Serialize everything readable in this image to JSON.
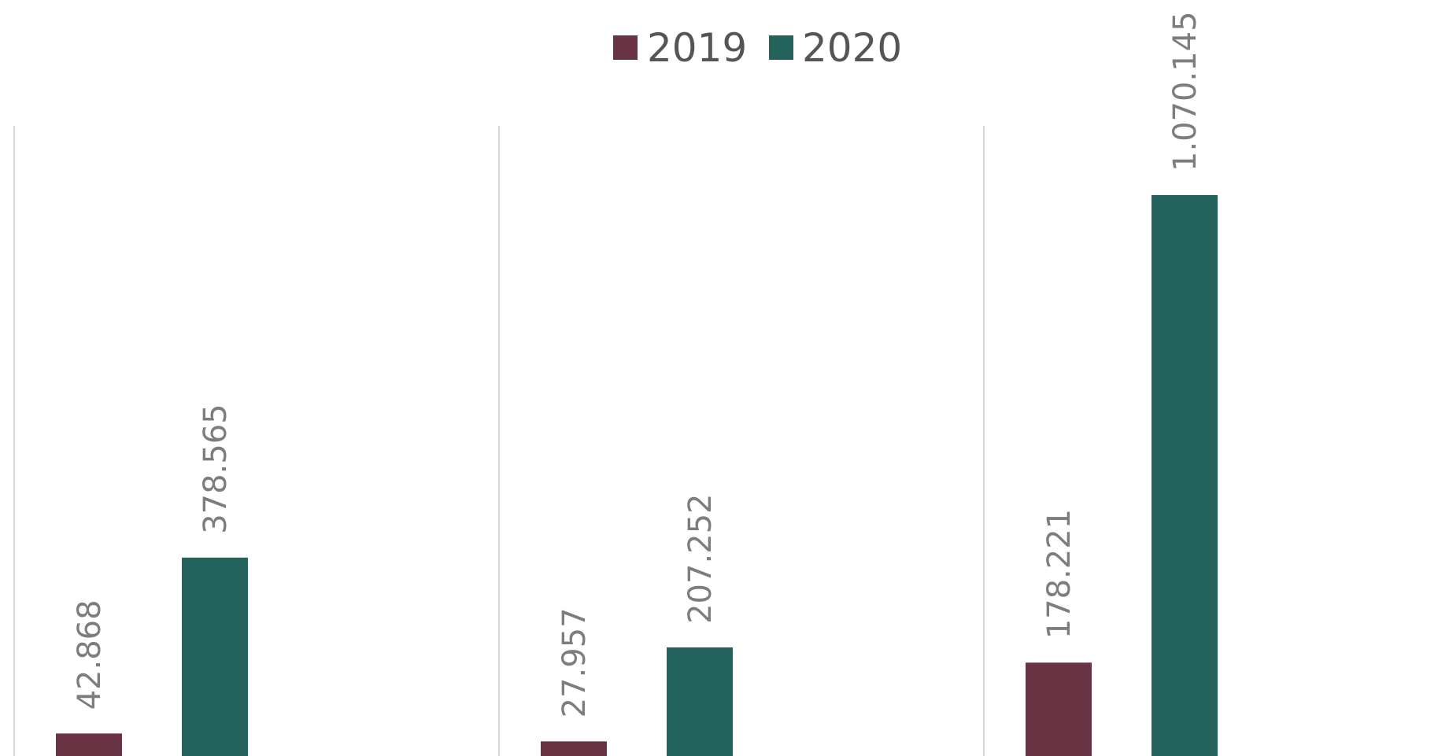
{
  "chart_data": {
    "type": "bar",
    "categories": [
      "",
      "",
      ""
    ],
    "series": [
      {
        "name": "2019",
        "color": "#6a3344",
        "values": [
          42868,
          27957,
          178221
        ],
        "labels": [
          "42.868",
          "27.957",
          "178.221"
        ]
      },
      {
        "name": "2020",
        "color": "#24635b",
        "values": [
          378565,
          207252,
          1070145
        ],
        "labels": [
          "378.565",
          "207.252",
          "1.070.145"
        ]
      }
    ],
    "legend": {
      "position": "top",
      "items": [
        "2019",
        "2020"
      ]
    },
    "label_color": "#7d7d7d",
    "gridline_color": "#d9d9d9",
    "grid": true,
    "title": "",
    "xlabel": "",
    "ylabel": "",
    "ylim": [
      0,
      1200000
    ]
  }
}
